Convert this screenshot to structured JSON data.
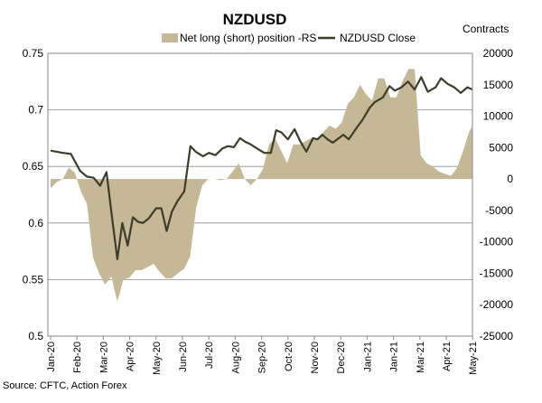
{
  "chart_data": {
    "type": "area+line",
    "title": "NZDUSD",
    "right_axis_label": "Contracts",
    "source": "Source: CFTC, Action Forex",
    "legend": {
      "placement": "top",
      "items": [
        {
          "name": "Net long (short) position -RS",
          "kind": "area",
          "color": "#c4b896"
        },
        {
          "name": "NZDUSD Close",
          "kind": "line",
          "color": "#3d3d2b"
        }
      ]
    },
    "left_axis": {
      "min": 0.5,
      "max": 0.75,
      "ticks": [
        "0.75",
        "0.7",
        "0.65",
        "0.6",
        "0.55",
        "0.5"
      ]
    },
    "right_axis": {
      "min": -25000,
      "max": 20000,
      "ticks": [
        "20000",
        "15000",
        "10000",
        "5000",
        "0",
        "-5000",
        "-10000",
        "-15000",
        "-20000",
        "-25000"
      ]
    },
    "x_ticks": [
      "Jan-20",
      "Feb-20",
      "Mar-20",
      "Apr-20",
      "May-20",
      "Jun-20",
      "Jul-20",
      "Aug-20",
      "Sep-20",
      "Oct-20",
      "Nov-20",
      "Dec-20",
      "Jan-21",
      "Jan-21",
      "Mar-21",
      "Apr-21",
      "May-21"
    ],
    "grid": "horizontal",
    "series": [
      {
        "name": "Net long (short) position -RS",
        "axis": "right",
        "x": [
          0,
          0.23,
          0.46,
          0.69,
          0.92,
          1.15,
          1.38,
          1.61,
          1.84,
          2.07,
          2.3,
          2.53,
          2.76,
          2.99,
          3.22,
          3.45,
          3.68,
          3.91,
          4.14,
          4.37,
          4.6,
          4.83,
          5.06,
          5.29,
          5.52,
          5.75,
          5.98,
          6.21,
          6.44,
          6.67,
          6.9,
          7.13,
          7.36,
          7.59,
          7.82,
          8.05,
          8.28,
          8.51,
          8.74,
          8.97,
          9.2,
          9.43,
          9.66,
          9.89,
          10.12,
          10.35,
          10.58,
          10.81,
          11.04,
          11.27,
          11.5,
          11.73,
          11.96,
          12.19,
          12.42,
          12.65,
          12.88,
          13.11,
          13.34,
          13.57,
          13.8,
          14.03,
          14.26,
          14.49,
          14.72,
          14.95,
          15.18,
          15.41,
          15.64,
          15.87,
          16.0
        ],
        "values": [
          -1500,
          -500,
          0,
          1800,
          1000,
          -2000,
          -4000,
          -12500,
          -15000,
          -16800,
          -15500,
          -19500,
          -16000,
          -15700,
          -14500,
          -14500,
          -14000,
          -13500,
          -14800,
          -15800,
          -15800,
          -15000,
          -14300,
          -12300,
          -4500,
          -1000,
          0,
          0,
          -200,
          0,
          1200,
          2500,
          0,
          -1000,
          0,
          1600,
          5500,
          6500,
          4500,
          2500,
          5500,
          5500,
          6000,
          6500,
          6500,
          7500,
          8500,
          8000,
          9000,
          12000,
          13000,
          15000,
          13500,
          12500,
          16000,
          16000,
          13000,
          13000,
          15500,
          17500,
          17500,
          3800,
          2500,
          2000,
          1200,
          800,
          500,
          1800,
          4500,
          7500,
          8500
        ]
      },
      {
        "name": "NZDUSD Close",
        "axis": "left",
        "x": [
          0,
          0.47,
          0.77,
          1.12,
          1.38,
          1.63,
          1.88,
          2.12,
          2.33,
          2.53,
          2.72,
          2.92,
          3.12,
          3.32,
          3.5,
          3.72,
          4.0,
          4.2,
          4.4,
          4.6,
          4.8,
          5.07,
          5.3,
          5.5,
          5.78,
          6.0,
          6.25,
          6.52,
          6.72,
          6.95,
          7.18,
          7.37,
          7.55,
          7.82,
          8.1,
          8.35,
          8.55,
          8.75,
          9.0,
          9.25,
          9.45,
          9.7,
          9.95,
          10.12,
          10.3,
          10.5,
          10.7,
          11.1,
          11.3,
          11.6,
          11.85,
          12.1,
          12.3,
          12.6,
          12.85,
          13.05,
          13.3,
          13.55,
          13.8,
          14.05,
          14.3,
          14.6,
          14.8,
          15.05,
          15.3,
          15.55,
          15.8,
          16.0
        ],
        "values": [
          0.664,
          0.662,
          0.661,
          0.646,
          0.641,
          0.64,
          0.633,
          0.645,
          0.605,
          0.568,
          0.6,
          0.58,
          0.605,
          0.601,
          0.6,
          0.604,
          0.613,
          0.613,
          0.593,
          0.61,
          0.619,
          0.628,
          0.668,
          0.663,
          0.659,
          0.662,
          0.66,
          0.666,
          0.668,
          0.667,
          0.675,
          0.672,
          0.67,
          0.666,
          0.662,
          0.662,
          0.682,
          0.68,
          0.674,
          0.683,
          0.673,
          0.663,
          0.675,
          0.674,
          0.678,
          0.674,
          0.671,
          0.678,
          0.674,
          0.684,
          0.692,
          0.702,
          0.707,
          0.711,
          0.721,
          0.717,
          0.72,
          0.725,
          0.718,
          0.729,
          0.716,
          0.72,
          0.728,
          0.723,
          0.72,
          0.715,
          0.72,
          0.718
        ]
      }
    ]
  }
}
